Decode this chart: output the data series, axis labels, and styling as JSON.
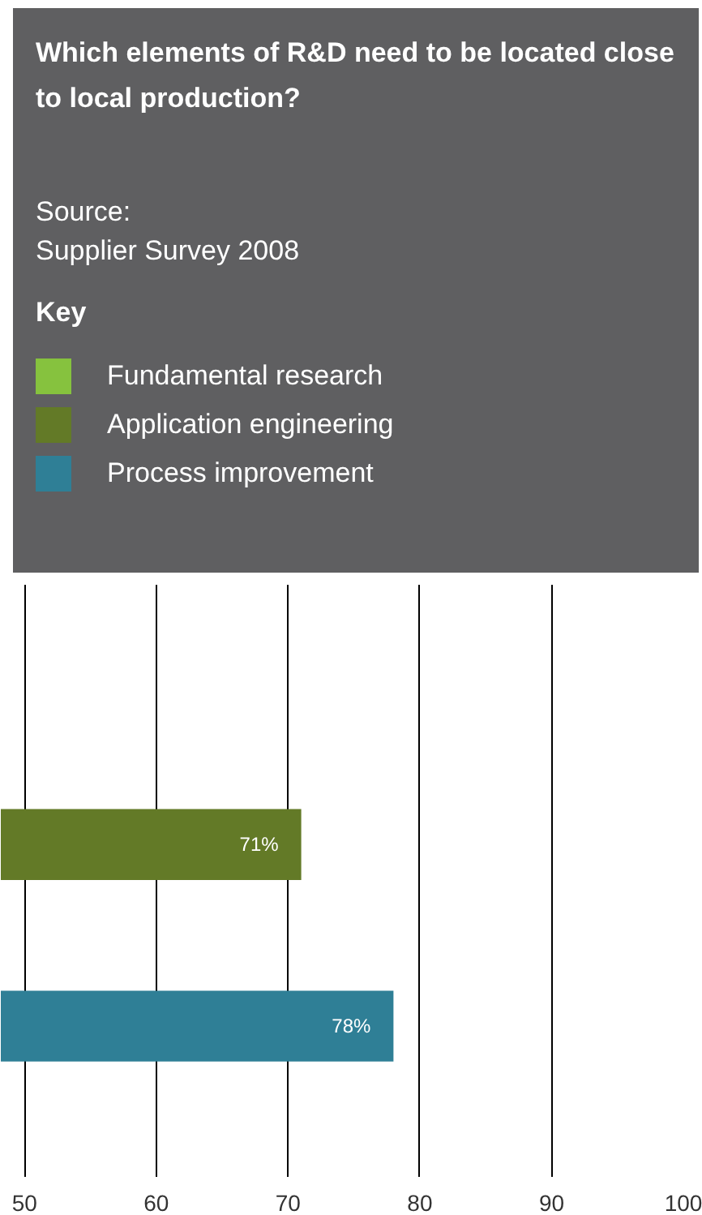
{
  "chart_data": {
    "type": "bar",
    "orientation": "horizontal",
    "title": "Which elements of R&D need to be located close to local production?",
    "annotations": [
      "Source:",
      "Supplier Survey 2008"
    ],
    "legend_title": "Key",
    "legend": "top",
    "categories": [
      null,
      null,
      null
    ],
    "series": [
      {
        "name": "Fundamental research",
        "color": "#86c23e",
        "values": [
          null,
          null,
          null
        ],
        "value_labels": [
          null,
          null,
          null
        ]
      },
      {
        "name": "Application engineering",
        "color": "#637a27",
        "values": [
          null,
          71,
          null
        ],
        "value_labels": [
          null,
          "71%",
          null
        ]
      },
      {
        "name": "Process improvement",
        "color": "#2f7f96",
        "values": [
          null,
          null,
          78
        ],
        "value_labels": [
          null,
          null,
          "78%"
        ]
      }
    ],
    "xlim": [
      48.2,
      100
    ],
    "xticks": [
      50,
      60,
      70,
      80,
      90,
      100
    ],
    "grid": "x"
  }
}
